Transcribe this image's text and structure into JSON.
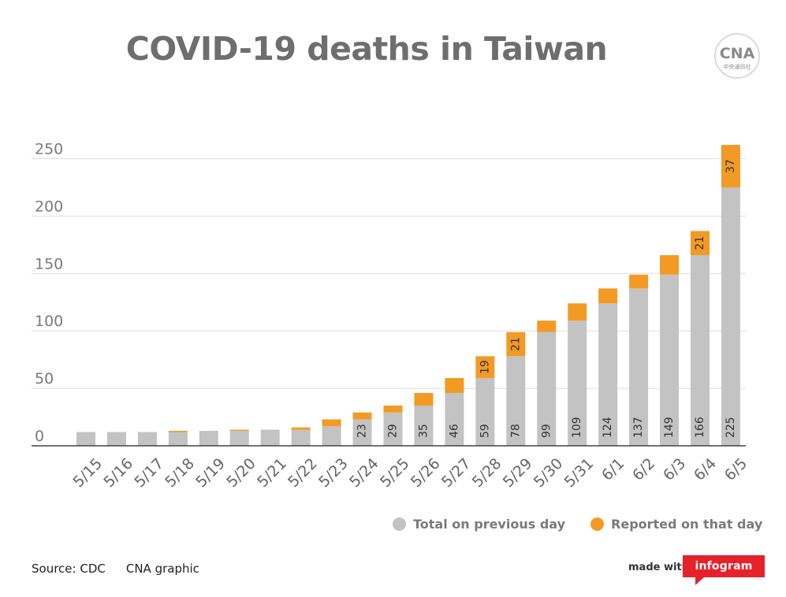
{
  "title": "COVID-19 deaths in Taiwan",
  "logo": {
    "mark": "CNA",
    "caption": "中央通訊社"
  },
  "legend": {
    "previous": "Total on previous day",
    "reported": "Reported on that day"
  },
  "source": "Source: CDC",
  "credit": "CNA graphic",
  "made_with": "made with",
  "infogram": "infogram",
  "colors": {
    "previous": "#c3c3c3",
    "reported": "#f39a25",
    "grid": "#dddddd",
    "axis": "#444444"
  },
  "chart_data": {
    "type": "bar",
    "stacked": true,
    "title": "COVID-19 deaths in Taiwan",
    "categories": [
      "5/15",
      "5/16",
      "5/17",
      "5/18",
      "5/19",
      "5/20",
      "5/21",
      "5/22",
      "5/23",
      "5/24",
      "5/25",
      "5/26",
      "5/27",
      "5/28",
      "5/29",
      "5/30",
      "5/31",
      "6/1",
      "6/2",
      "6/3",
      "6/4",
      "6/5"
    ],
    "series": [
      {
        "name": "Total on previous day",
        "values": [
          12,
          12,
          12,
          12,
          13,
          13,
          14,
          14,
          17,
          23,
          29,
          35,
          46,
          59,
          78,
          99,
          109,
          124,
          137,
          149,
          166,
          225
        ]
      },
      {
        "name": "Reported on that day",
        "values": [
          0,
          0,
          0,
          1,
          0,
          1,
          0,
          2,
          6,
          6,
          6,
          11,
          13,
          19,
          21,
          10,
          15,
          13,
          12,
          17,
          21,
          37
        ]
      }
    ],
    "data_labels": {
      "Total on previous day": [
        "",
        "",
        "",
        "",
        "",
        "",
        "",
        "",
        "",
        "23",
        "29",
        "35",
        "46",
        "59",
        "78",
        "99",
        "109",
        "124",
        "137",
        "149",
        "166",
        "225"
      ],
      "Reported on that day": [
        "",
        "",
        "",
        "",
        "",
        "",
        "",
        "",
        "",
        "",
        "",
        "",
        "",
        "19",
        "21",
        "",
        "",
        "",
        "",
        "",
        "21",
        "37"
      ]
    },
    "yticks": [
      0,
      50,
      100,
      150,
      200,
      250
    ],
    "ylim": [
      0,
      262
    ],
    "grid": true,
    "legend_position": "bottom-right"
  }
}
